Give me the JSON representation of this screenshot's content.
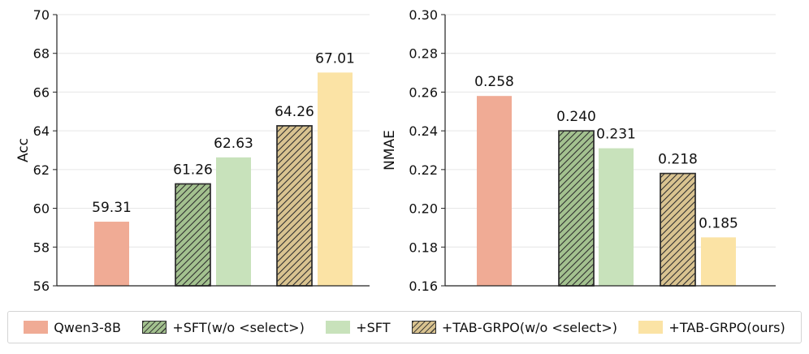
{
  "legend": {
    "entries": [
      {
        "label": "Qwen3-8B",
        "color": "#f0ab95",
        "hatched": false
      },
      {
        "label": "+SFT(w/o <select>)",
        "color": "#a3c18f",
        "hatched": true
      },
      {
        "label": "+SFT",
        "color": "#c8e2bb",
        "hatched": false
      },
      {
        "label": "+TAB-GRPO(w/o <select>)",
        "color": "#d9c390",
        "hatched": true
      },
      {
        "label": "+TAB-GRPO(ours)",
        "color": "#fbe3a5",
        "hatched": false
      }
    ]
  },
  "chart_data": [
    {
      "type": "bar",
      "title": "",
      "xlabel": "",
      "ylabel": "Acc",
      "ylim": [
        56,
        70
      ],
      "yticks": [
        "56",
        "58",
        "60",
        "62",
        "64",
        "66",
        "68",
        "70"
      ],
      "grid": "horizontal",
      "series": [
        {
          "name": "Qwen3-8B",
          "value": 59.31,
          "label": "59.31",
          "color": "#f0ab95",
          "hatched": false
        },
        {
          "name": "+SFT(w/o <select>)",
          "value": 61.26,
          "label": "61.26",
          "color": "#a3c18f",
          "hatched": true
        },
        {
          "name": "+SFT",
          "value": 62.63,
          "label": "62.63",
          "color": "#c8e2bb",
          "hatched": false
        },
        {
          "name": "+TAB-GRPO(w/o <select>)",
          "value": 64.26,
          "label": "64.26",
          "color": "#d9c390",
          "hatched": true
        },
        {
          "name": "+TAB-GRPO(ours)",
          "value": 67.01,
          "label": "67.01",
          "color": "#fbe3a5",
          "hatched": false
        }
      ]
    },
    {
      "type": "bar",
      "title": "",
      "xlabel": "",
      "ylabel": "NMAE",
      "ylim": [
        0.16,
        0.3
      ],
      "yticks": [
        "0.16",
        "0.18",
        "0.20",
        "0.22",
        "0.24",
        "0.26",
        "0.28",
        "0.30"
      ],
      "grid": "horizontal",
      "series": [
        {
          "name": "Qwen3-8B",
          "value": 0.258,
          "label": "0.258",
          "color": "#f0ab95",
          "hatched": false
        },
        {
          "name": "+SFT(w/o <select>)",
          "value": 0.24,
          "label": "0.240",
          "color": "#a3c18f",
          "hatched": true
        },
        {
          "name": "+SFT",
          "value": 0.231,
          "label": "0.231",
          "color": "#c8e2bb",
          "hatched": false
        },
        {
          "name": "+TAB-GRPO(w/o <select>)",
          "value": 0.218,
          "label": "0.218",
          "color": "#d9c390",
          "hatched": true
        },
        {
          "name": "+TAB-GRPO(ours)",
          "value": 0.185,
          "label": "0.185",
          "color": "#fbe3a5",
          "hatched": false
        }
      ]
    }
  ]
}
